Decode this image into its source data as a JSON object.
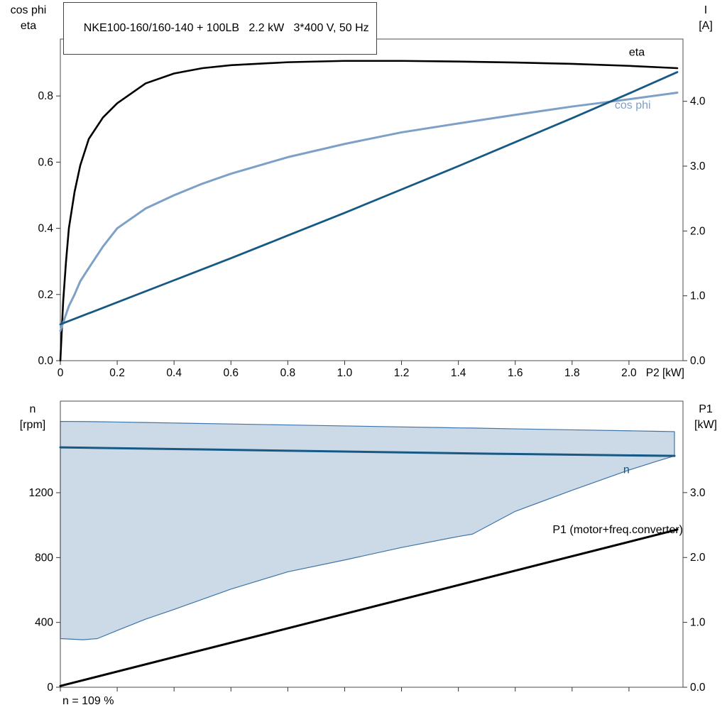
{
  "header": {
    "title_box": "NKE100-160/160-140 + 100LB   2.2 kW   3*400 V, 50 Hz"
  },
  "axes_titles": {
    "top_left_line1": "cos phi",
    "top_left_line2": "eta",
    "top_right_line1": "I",
    "top_right_line2": "[A]",
    "bottom_left_line1": "n",
    "bottom_left_line2": "[rpm]",
    "bottom_right_line1": "P1",
    "bottom_right_line2": "[kW]"
  },
  "footer": {
    "speed_note": "n = 109 %"
  },
  "colors": {
    "black": "#000000",
    "dark_blue": "#175985",
    "light_blue": "#7da0c7",
    "band_fill": "#ccd9e6",
    "band_stroke": "#3e74a8",
    "frame": "#4d4d4d"
  },
  "chart_data": [
    {
      "type": "line",
      "panel": "top",
      "x_label": "P2 [kW]",
      "x_range": [
        0,
        2.19
      ],
      "x_ticks": [
        0,
        0.2,
        0.4,
        0.6,
        0.8,
        1.0,
        1.2,
        1.4,
        1.6,
        1.8,
        2.0
      ],
      "x_tick_labels": [
        "0",
        "0.2",
        "0.4",
        "0.6",
        "0.8",
        "1.0",
        "1.2",
        "1.4",
        "1.6",
        "1.8",
        "2.0"
      ],
      "left_axis": {
        "range": [
          0,
          0.972
        ],
        "ticks": [
          0,
          0.2,
          0.4,
          0.6,
          0.8
        ],
        "labels": [
          "0.0",
          "0.2",
          "0.4",
          "0.6",
          "0.8"
        ]
      },
      "right_axis": {
        "range": [
          0,
          4.96
        ],
        "ticks": [
          0,
          1,
          2,
          3,
          4
        ],
        "labels": [
          "0.0",
          "1.0",
          "2.0",
          "3.0",
          "4.0"
        ]
      },
      "series": [
        {
          "id": "eta",
          "name": "eta",
          "axis": "left",
          "color": "#000000",
          "width": 2.6,
          "x": [
            0,
            0.01,
            0.02,
            0.03,
            0.05,
            0.07,
            0.1,
            0.15,
            0.2,
            0.3,
            0.4,
            0.5,
            0.6,
            0.8,
            1.0,
            1.2,
            1.4,
            1.6,
            1.8,
            2.0,
            2.17
          ],
          "y": [
            0,
            0.18,
            0.3,
            0.4,
            0.51,
            0.59,
            0.67,
            0.735,
            0.778,
            0.838,
            0.868,
            0.884,
            0.893,
            0.902,
            0.906,
            0.906,
            0.904,
            0.901,
            0.897,
            0.891,
            0.884
          ]
        },
        {
          "id": "cos-phi",
          "name": "cos phi",
          "axis": "left",
          "color": "#7da0c7",
          "width": 3,
          "x": [
            0,
            0.01,
            0.02,
            0.03,
            0.05,
            0.07,
            0.1,
            0.15,
            0.2,
            0.3,
            0.4,
            0.5,
            0.6,
            0.8,
            1.0,
            1.2,
            1.4,
            1.6,
            1.8,
            2.0,
            2.17
          ],
          "y": [
            0.09,
            0.115,
            0.14,
            0.165,
            0.2,
            0.24,
            0.28,
            0.345,
            0.4,
            0.46,
            0.5,
            0.535,
            0.565,
            0.615,
            0.655,
            0.69,
            0.717,
            0.743,
            0.768,
            0.79,
            0.81
          ]
        },
        {
          "id": "current-I",
          "name": "I",
          "axis": "right",
          "color": "#175985",
          "width": 2.8,
          "x": [
            0,
            0.2,
            0.4,
            0.6,
            0.8,
            1.0,
            1.2,
            1.4,
            1.6,
            1.8,
            2.0,
            2.17
          ],
          "y": [
            0.56,
            0.9,
            1.24,
            1.58,
            1.93,
            2.28,
            2.64,
            3.0,
            3.37,
            3.74,
            4.12,
            4.45
          ]
        }
      ],
      "annotations": [
        {
          "id": "eta-label",
          "text": "eta",
          "x": 2.0,
          "y": 0.922,
          "axis": "left",
          "anchor": "start",
          "color": "#000000"
        },
        {
          "id": "cosphi-label",
          "text": "cos phi",
          "x": 1.95,
          "y": 0.762,
          "axis": "left",
          "anchor": "start",
          "color": "#7da0c7"
        }
      ]
    },
    {
      "type": "line",
      "panel": "bottom",
      "x_label": "",
      "x_range": [
        0,
        2.19
      ],
      "x_ticks": [
        0,
        0.2,
        0.4,
        0.6,
        0.8,
        1.0,
        1.2,
        1.4,
        1.6,
        1.8,
        2.0
      ],
      "x_tick_labels": [],
      "left_axis": {
        "range": [
          0,
          1765
        ],
        "ticks": [
          0,
          400,
          800,
          1200
        ],
        "labels": [
          "0",
          "400",
          "800",
          "1200"
        ]
      },
      "right_axis": {
        "range": [
          0,
          4.41
        ],
        "ticks": [
          0,
          1,
          2,
          3
        ],
        "labels": [
          "0.0",
          "1.0",
          "2.0",
          "3.0"
        ]
      },
      "band": {
        "name": "speed-control-range-band",
        "fill": "#ccd9e6",
        "stroke": "#3e74a8",
        "x": [
          0,
          0.08,
          0.13,
          0.2,
          0.3,
          0.4,
          0.6,
          0.8,
          1.0,
          1.2,
          1.4,
          1.45,
          1.6,
          1.8,
          2.0,
          2.1,
          2.16
        ],
        "upper": [
          1640,
          1639,
          1638,
          1636,
          1633,
          1630,
          1624,
          1618,
          1612,
          1606,
          1600,
          1599,
          1594,
          1588,
          1582,
          1579,
          1577
        ],
        "lower": [
          300,
          293,
          300,
          350,
          420,
          480,
          605,
          712,
          785,
          862,
          930,
          945,
          1085,
          1215,
          1340,
          1395,
          1427
        ]
      },
      "series": [
        {
          "id": "speed-n",
          "name": "n",
          "axis": "left",
          "color": "#175985",
          "width": 3,
          "x": [
            0,
            0.5,
            1.0,
            1.5,
            2.16
          ],
          "y": [
            1480,
            1467,
            1454,
            1441,
            1427
          ]
        },
        {
          "id": "p1-input-power",
          "name": "P1 (motor+freq.converter)",
          "axis": "right",
          "color": "#000000",
          "width": 3,
          "x": [
            0,
            2.17
          ],
          "y": [
            0.02,
            2.43
          ]
        }
      ],
      "annotations": [
        {
          "id": "n-label",
          "text": "n",
          "x": 1.98,
          "y": 1320,
          "axis": "left",
          "anchor": "start",
          "color": "#175985"
        },
        {
          "id": "p1-label",
          "text": "P1 (motor+freq.converter)",
          "x": 2.19,
          "y": 950,
          "axis": "left",
          "anchor": "end",
          "color": "#000000"
        }
      ]
    }
  ]
}
